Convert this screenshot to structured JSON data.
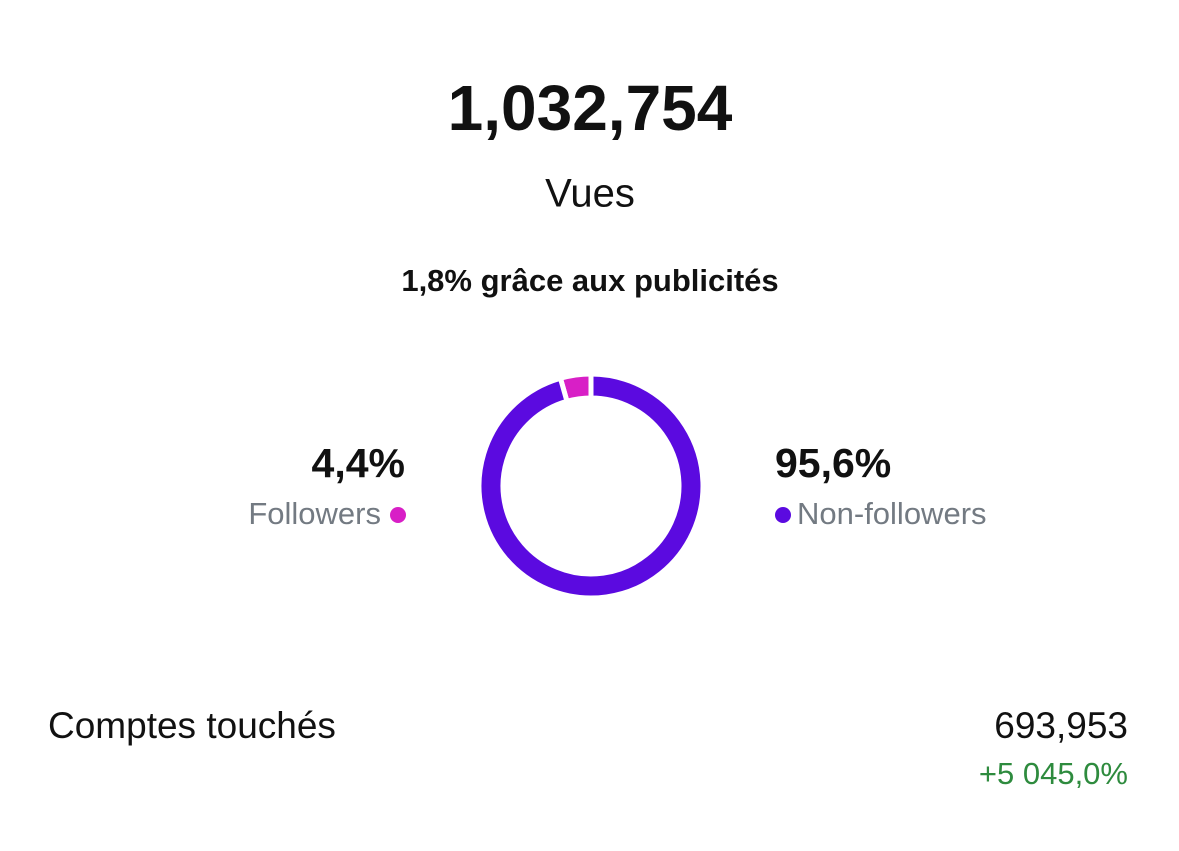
{
  "header": {
    "total": "1,032,754",
    "label": "Vues",
    "note": "1,8% grâce aux publicités"
  },
  "chart_data": {
    "type": "donut",
    "categories": [
      "Followers",
      "Non-followers"
    ],
    "values": [
      4.4,
      95.6
    ],
    "value_labels": [
      "4,4%",
      "95,6%"
    ],
    "colors": [
      "#d81fc6",
      "#5b0ae0"
    ]
  },
  "metric": {
    "label": "Comptes touchés",
    "value": "693,953",
    "change": "+5 045,0%"
  }
}
